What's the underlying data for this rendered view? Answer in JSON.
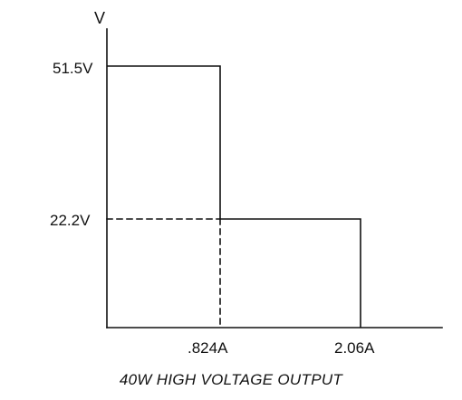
{
  "chart_data": {
    "type": "line",
    "title": "40W HIGH VOLTAGE OUTPUT",
    "ylabel": "V",
    "xlabel": "",
    "ticks": {
      "y": [
        "51.5V",
        "22.2V"
      ],
      "x": [
        ".824A",
        "2.06A"
      ]
    },
    "series": [
      {
        "x": [
          0,
          0.824,
          0.824,
          2.06,
          2.06
        ],
        "y": [
          51.5,
          51.5,
          22.2,
          22.2,
          0
        ]
      }
    ],
    "reference_lines": {
      "horizontal_dashed_at_v": 22.2,
      "vertical_dashed_at_a": 0.824
    },
    "xlim": [
      0,
      3.0
    ],
    "ylim": [
      0,
      60
    ],
    "grid": false
  },
  "colors": {
    "ink": "#111111",
    "background": "#ffffff"
  }
}
